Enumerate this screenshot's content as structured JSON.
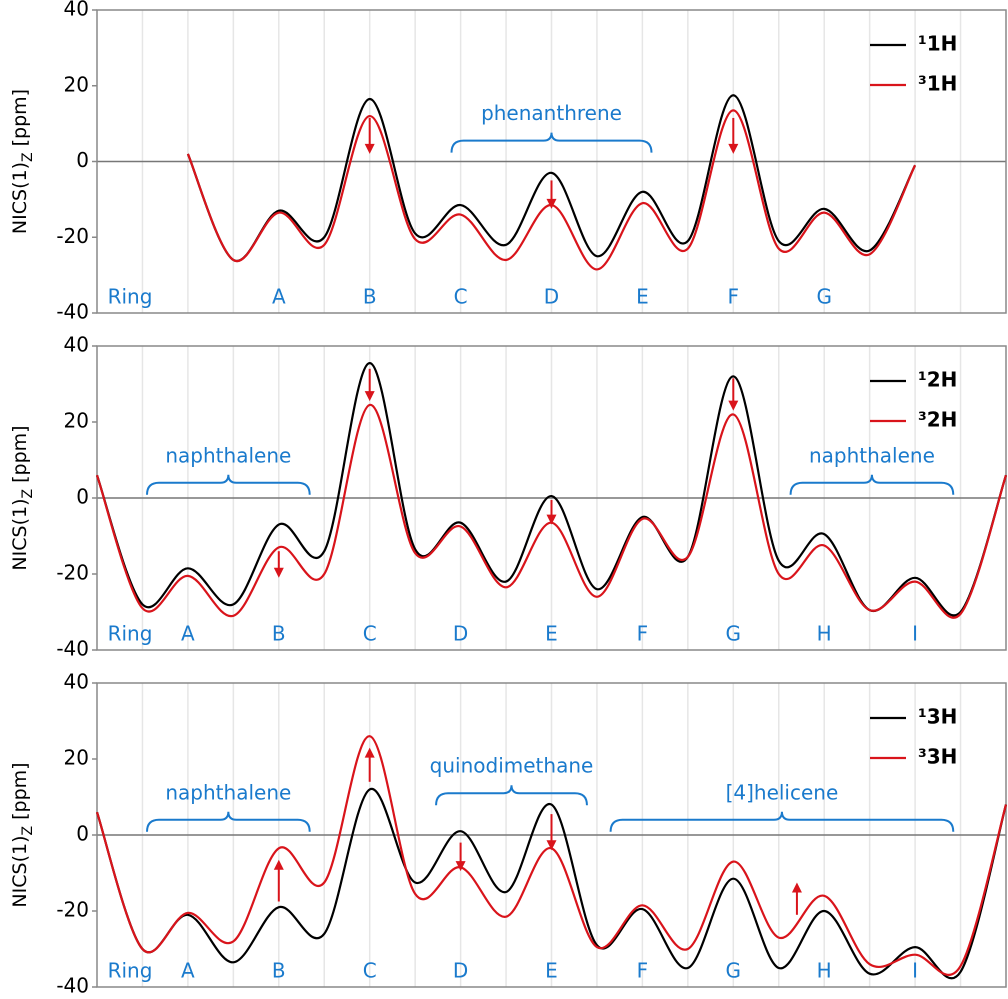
{
  "chart_data": [
    {
      "type": "line",
      "ylabel": [
        "NICS(1)",
        "Z",
        " [ppm]"
      ],
      "ring_title": "Ring",
      "categories": [
        null,
        "A",
        "B",
        "C",
        "D",
        "E",
        "F",
        "G",
        null
      ],
      "x": [
        1,
        1.5,
        2,
        2.5,
        3,
        3.5,
        4,
        4.5,
        5,
        5.5,
        6,
        6.5,
        7,
        7.5,
        8,
        8.5,
        9
      ],
      "series": [
        {
          "name": "¹1H",
          "color": "#000000",
          "values": [
            2,
            -26,
            -13,
            -20,
            16.5,
            -19,
            -11.5,
            -22,
            -3,
            -25,
            -8,
            -21,
            17.5,
            -21,
            -12.5,
            -23.5,
            -1
          ]
        },
        {
          "name": "³1H",
          "color": "#d9141b",
          "values": [
            2,
            -26,
            -13.5,
            -22,
            12,
            -20.5,
            -14,
            -26,
            -11.5,
            -28.5,
            -11,
            -23,
            13.5,
            -23,
            -13.5,
            -24.5,
            -1
          ]
        }
      ],
      "annotations": [
        "phenanthrene"
      ],
      "xlim": [
        0,
        10
      ],
      "xticks": [
        0.5,
        1,
        1.5,
        2,
        2.5,
        3,
        3.5,
        4,
        4.5,
        5,
        5.5,
        6,
        6.5,
        7,
        7.5,
        8,
        8.5,
        9,
        9.5
      ],
      "ylim": [
        -40,
        40
      ],
      "yticks": [
        -40,
        -20,
        0,
        20,
        40
      ],
      "grid": true,
      "zero_line": true,
      "legend": "upper right"
    },
    {
      "type": "line",
      "ylabel": [
        "NICS(1)",
        "Z",
        " [ppm]"
      ],
      "ring_title": "Ring",
      "categories": [
        "A",
        "B",
        "C",
        "D",
        "E",
        "F",
        "G",
        "H",
        "I"
      ],
      "x": [
        0,
        0.5,
        1,
        1.5,
        2,
        2.5,
        3,
        3.5,
        4,
        4.5,
        5,
        5.5,
        6,
        6.5,
        7,
        7.5,
        8,
        8.5,
        9,
        9.5,
        10
      ],
      "series": [
        {
          "name": "¹2H",
          "color": "#000000",
          "values": [
            6,
            -28,
            -18.5,
            -28,
            -7,
            -14,
            35.5,
            -13.5,
            -6.5,
            -22,
            0.5,
            -24,
            -5,
            -15.5,
            32,
            -16.5,
            -9.5,
            -29.5,
            -21,
            -30,
            6
          ]
        },
        {
          "name": "³2H",
          "color": "#d9141b",
          "values": [
            6,
            -29,
            -20.5,
            -31,
            -13,
            -20,
            24.5,
            -14.5,
            -7.5,
            -23.5,
            -6.5,
            -26,
            -5.5,
            -15.5,
            22,
            -20,
            -12.5,
            -29.5,
            -22,
            -30.5,
            6
          ]
        }
      ],
      "annotations": [
        "naphthalene",
        "naphthalene"
      ],
      "xlim": [
        0,
        10
      ],
      "xticks": [
        0.5,
        1,
        1.5,
        2,
        2.5,
        3,
        3.5,
        4,
        4.5,
        5,
        5.5,
        6,
        6.5,
        7,
        7.5,
        8,
        8.5,
        9,
        9.5
      ],
      "ylim": [
        -40,
        40
      ],
      "yticks": [
        -40,
        -20,
        0,
        20,
        40
      ],
      "grid": true,
      "zero_line": true,
      "legend": "upper right"
    },
    {
      "type": "line",
      "ylabel": [
        "NICS(1)",
        "Z",
        " [ppm]"
      ],
      "ring_title": "Ring",
      "categories": [
        "A",
        "B",
        "C",
        "D",
        "E",
        "F",
        "G",
        "H",
        "I"
      ],
      "x": [
        0,
        0.5,
        1,
        1.5,
        2,
        2.5,
        3,
        3.5,
        4,
        4.5,
        5,
        5.5,
        6,
        6.5,
        7,
        7.5,
        8,
        8.5,
        9,
        9.5,
        10
      ],
      "series": [
        {
          "name": "¹3H",
          "color": "#000000",
          "values": [
            6,
            -30,
            -21,
            -33.5,
            -19,
            -26,
            12,
            -12.5,
            1,
            -15,
            8,
            -29,
            -19.5,
            -35,
            -11.5,
            -35,
            -20,
            -36.5,
            -29.5,
            -36,
            8
          ]
        },
        {
          "name": "³3H",
          "color": "#d9141b",
          "values": [
            6,
            -30,
            -20.5,
            -28,
            -3.5,
            -12.5,
            26,
            -15.5,
            -8.5,
            -21.5,
            -3.5,
            -29.5,
            -18.5,
            -30,
            -7,
            -27,
            -16,
            -34,
            -31.5,
            -34.5,
            8
          ]
        }
      ],
      "annotations": [
        "naphthalene",
        "quinodimethane",
        "[4]helicene"
      ],
      "xlim": [
        0,
        10
      ],
      "xticks": [
        0.5,
        1,
        1.5,
        2,
        2.5,
        3,
        3.5,
        4,
        4.5,
        5,
        5.5,
        6,
        6.5,
        7,
        7.5,
        8,
        8.5,
        9,
        9.5
      ],
      "ylim": [
        -40,
        40
      ],
      "yticks": [
        -40,
        -20,
        0,
        20,
        40
      ],
      "grid": true,
      "zero_line": true,
      "legend": "upper right"
    }
  ]
}
